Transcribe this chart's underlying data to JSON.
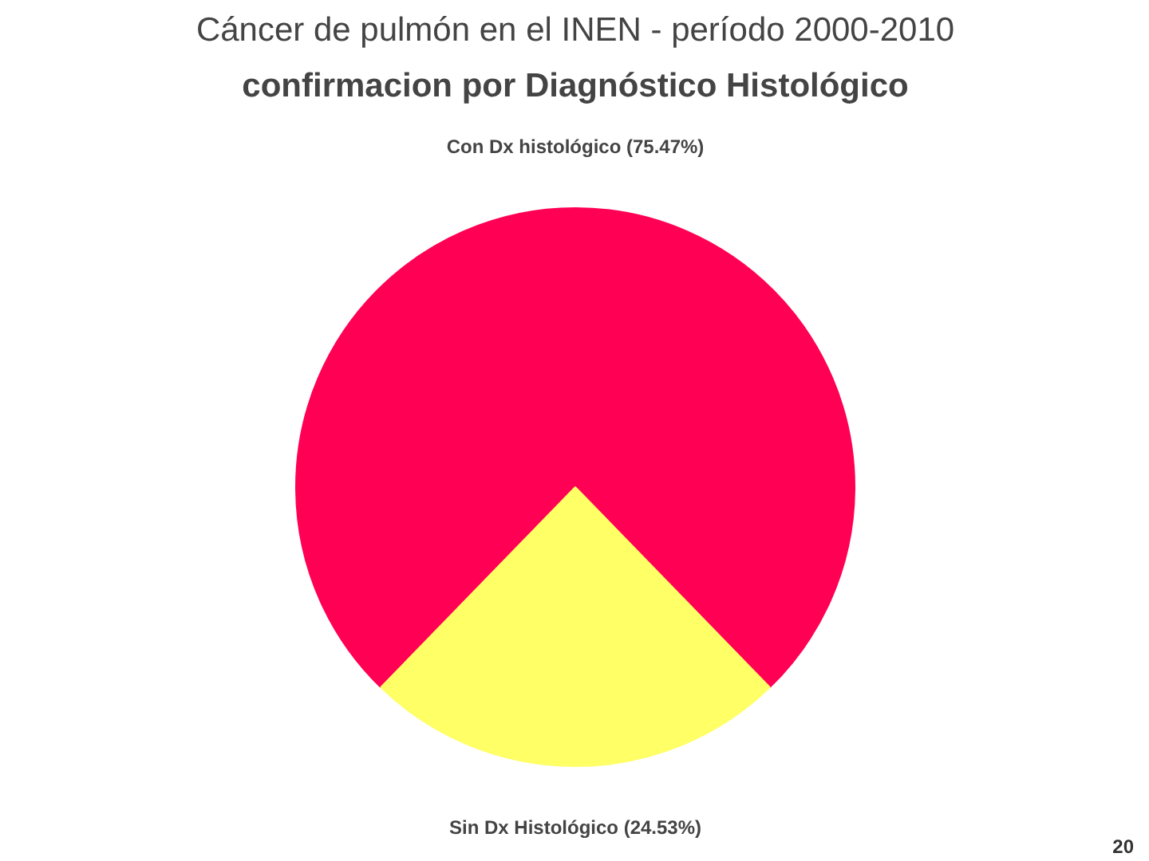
{
  "chart_data": {
    "type": "pie",
    "title": "Cáncer de pulmón en el INEN - período 2000-2010",
    "subtitle": "confirmacion por Diagnóstico Histológico",
    "categories": [
      "Con Dx histológico",
      "Sin Dx Histológico"
    ],
    "values": [
      75.47,
      24.53
    ],
    "colors": [
      "#ff0055",
      "#ffff66"
    ],
    "value_labels": [
      "(75.47%)",
      "(24.53%)"
    ],
    "annotations": [
      "20"
    ]
  }
}
